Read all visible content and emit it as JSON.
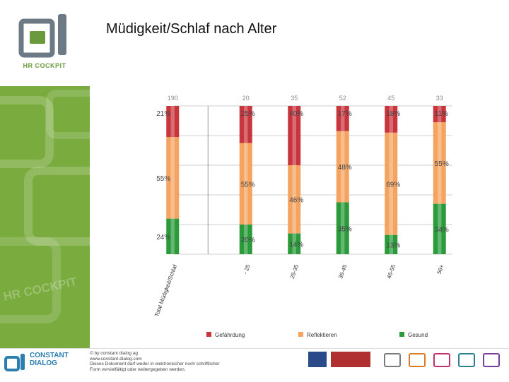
{
  "header": {
    "title": "Müdigkeit/Schlaf nach Alter",
    "logo_text": "HR COCKPIT",
    "watermark_text": "HR COCKPIT"
  },
  "chart_data": {
    "type": "bar",
    "stacked": true,
    "normalized": true,
    "categories": [
      "Total Müdigkeit/Schlaf",
      "- 25",
      "26-35",
      "36-45",
      "46-55",
      "56+"
    ],
    "counts": [
      "190",
      "20",
      "35",
      "52",
      "45",
      "33"
    ],
    "series": [
      {
        "name": "Gesund",
        "values": [
          24,
          20,
          14,
          35,
          13,
          34
        ],
        "labels": [
          "24%",
          "20%",
          "14%",
          "35%",
          "13%",
          "34%"
        ],
        "color": "#2a9a3a"
      },
      {
        "name": "Reflektieren",
        "values": [
          55,
          55,
          46,
          48,
          69,
          55
        ],
        "labels": [
          "55%",
          "55%",
          "46%",
          "48%",
          "69%",
          "55%"
        ],
        "color": "#f4a460"
      },
      {
        "name": "Gefährdung",
        "values": [
          21,
          25,
          40,
          17,
          18,
          11
        ],
        "labels": [
          "21%",
          "25%",
          "40%",
          "17%",
          "18%",
          "11%"
        ],
        "color": "#c8353d"
      }
    ],
    "ylim": [
      0,
      100
    ],
    "legend_position": "bottom"
  },
  "colors": {
    "gefaehrdung": "#c8353d",
    "reflektieren": "#f4a460",
    "gesund": "#2a9a3a",
    "sidebar_green": "#7aab3f",
    "brand_blue": "#2a7fb0"
  },
  "footer": {
    "company_line1": "CONSTANT",
    "company_line2": "DIALOG",
    "copyright_lines": [
      "© by constant dialog ag",
      "www.constant-dialog.com",
      "Dieses Dokument darf weder in elektronischer noch schriftlicher",
      "Form vervielfältigt oder weitergegeben werden."
    ]
  }
}
